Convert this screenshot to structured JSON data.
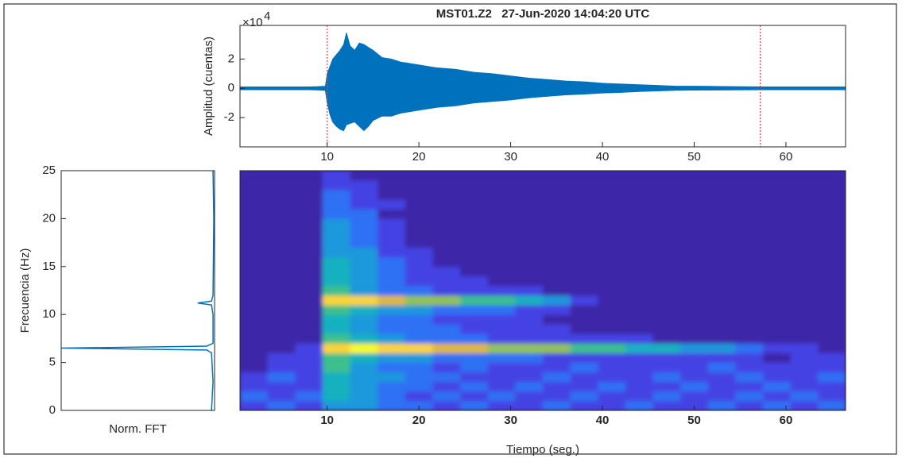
{
  "chart_data": [
    {
      "type": "area",
      "title": "MST01.Z2   27-Jun-2020 14:04:20 UTC",
      "y_scale_label": "×10",
      "y_scale_exponent": 4,
      "ylabel": "Amplitud (cuentas)",
      "x": [
        0.5,
        2,
        4,
        6,
        8,
        9,
        9.8,
        10,
        10.3,
        10.6,
        11,
        11.4,
        11.8,
        12.1,
        12.5,
        13,
        13.5,
        14,
        14.5,
        15,
        16,
        17,
        18,
        19,
        20,
        22,
        24,
        26,
        28,
        30,
        32,
        34,
        36,
        38,
        40,
        42,
        44,
        46,
        48,
        50,
        54,
        58,
        62,
        66.5
      ],
      "series": [
        {
          "color": "#0072bd",
          "values": [
            0.1,
            0.1,
            0.1,
            0.1,
            0.1,
            0.12,
            0.15,
            1.0,
            1.5,
            2.0,
            2.3,
            2.6,
            3.0,
            3.8,
            2.9,
            2.6,
            3.1,
            3.0,
            2.8,
            2.6,
            2.1,
            2.0,
            1.8,
            1.7,
            1.6,
            1.4,
            1.3,
            1.1,
            1.0,
            0.85,
            0.7,
            0.6,
            0.5,
            0.45,
            0.35,
            0.3,
            0.25,
            0.2,
            0.15,
            0.15,
            0.12,
            0.1,
            0.1,
            0.1
          ]
        },
        {
          "color": "#0072bd",
          "values": [
            -0.1,
            -0.1,
            -0.1,
            -0.1,
            -0.1,
            -0.12,
            -0.15,
            -1.0,
            -1.8,
            -2.3,
            -2.6,
            -2.8,
            -2.9,
            -2.5,
            -2.4,
            -2.3,
            -2.6,
            -2.9,
            -2.6,
            -2.2,
            -1.9,
            -1.9,
            -1.7,
            -1.6,
            -1.5,
            -1.3,
            -1.2,
            -1.0,
            -0.9,
            -0.8,
            -0.65,
            -0.55,
            -0.45,
            -0.4,
            -0.32,
            -0.28,
            -0.22,
            -0.18,
            -0.14,
            -0.13,
            -0.11,
            -0.1,
            -0.1,
            -0.1
          ]
        }
      ],
      "picks": [
        10,
        57.2
      ],
      "pick_color": "#e8433a",
      "xlim": [
        0.5,
        66.5
      ],
      "xticks": [
        10,
        20,
        30,
        40,
        50,
        60
      ],
      "ylim": [
        -4,
        4.3
      ],
      "yticks": [
        -2,
        0,
        2
      ]
    },
    {
      "type": "line",
      "ylabel": "Frecuencia (Hz)",
      "xlabel": "Norm. FFT",
      "frequencies": [
        0,
        3,
        6,
        6.3,
        6.5,
        6.7,
        7,
        10,
        11,
        11.2,
        11.4,
        12,
        20,
        24.9,
        25
      ],
      "values": [
        0.02,
        0.01,
        0.02,
        0.05,
        1,
        0.05,
        0.01,
        0.01,
        0.02,
        0.11,
        0.02,
        0.01,
        0.005,
        0.01,
        0.01
      ],
      "color": "#0072bd",
      "xlim": [
        1,
        0
      ],
      "ylim": [
        0,
        25
      ],
      "yticks": [
        0,
        5,
        10,
        15,
        20,
        25
      ]
    },
    {
      "type": "heatmap",
      "xlabel": "Tiempo (seg.)",
      "time_bins": [
        0.5,
        3.5,
        6.5,
        9.5,
        12.5,
        15.5,
        18.5,
        21.5,
        24.5,
        27.5,
        30.5,
        33.5,
        36.5,
        39.5,
        42.5,
        45.5,
        48.5,
        51.5,
        54.5,
        57.5,
        60.5,
        63.5,
        66.5
      ],
      "freq_bins": [
        0,
        1,
        2,
        3,
        4,
        5,
        6,
        7,
        8,
        9,
        10,
        11,
        12,
        13,
        14,
        15,
        16,
        17,
        18,
        19,
        20,
        21,
        22,
        23,
        24,
        25
      ],
      "z": [
        [
          1,
          2,
          1,
          3,
          3,
          2,
          2,
          1,
          2,
          1,
          1,
          2,
          1,
          1,
          2,
          1,
          1,
          2,
          1,
          2,
          1,
          2
        ],
        [
          2,
          1,
          2,
          4,
          3,
          2,
          1,
          2,
          1,
          2,
          1,
          1,
          2,
          1,
          1,
          2,
          1,
          1,
          2,
          1,
          2,
          1
        ],
        [
          1,
          1,
          1,
          4,
          3,
          2,
          2,
          1,
          2,
          1,
          2,
          1,
          1,
          2,
          1,
          1,
          2,
          1,
          1,
          2,
          1,
          1
        ],
        [
          1,
          2,
          1,
          4,
          3,
          3,
          2,
          2,
          1,
          1,
          1,
          2,
          1,
          1,
          1,
          2,
          1,
          1,
          2,
          1,
          1,
          2
        ],
        [
          0,
          1,
          1,
          5,
          3,
          2,
          2,
          1,
          2,
          1,
          1,
          1,
          2,
          1,
          1,
          1,
          1,
          2,
          1,
          1,
          1,
          1
        ],
        [
          0,
          1,
          1,
          5,
          4,
          3,
          3,
          2,
          2,
          2,
          2,
          1,
          1,
          1,
          1,
          1,
          1,
          1,
          1,
          0,
          1,
          1
        ],
        [
          0,
          0,
          1,
          8,
          9,
          8,
          8,
          7,
          7,
          6,
          6,
          6,
          5,
          5,
          4,
          4,
          3,
          3,
          2,
          1,
          1,
          0
        ],
        [
          0,
          0,
          0,
          5,
          4,
          3,
          2,
          2,
          2,
          1,
          1,
          1,
          1,
          1,
          1,
          0,
          0,
          0,
          0,
          0,
          0,
          0
        ],
        [
          0,
          0,
          0,
          4,
          3,
          2,
          2,
          2,
          1,
          1,
          1,
          1,
          0,
          0,
          0,
          0,
          0,
          0,
          0,
          0,
          0,
          0
        ],
        [
          0,
          0,
          0,
          4,
          3,
          2,
          2,
          1,
          1,
          1,
          1,
          0,
          0,
          0,
          0,
          0,
          0,
          0,
          0,
          0,
          0,
          0
        ],
        [
          0,
          0,
          0,
          5,
          4,
          3,
          3,
          2,
          2,
          2,
          1,
          1,
          0,
          0,
          0,
          0,
          0,
          0,
          0,
          0,
          0,
          0
        ],
        [
          0,
          0,
          0,
          8,
          8,
          7,
          6,
          6,
          5,
          5,
          4,
          3,
          1,
          0,
          0,
          0,
          0,
          0,
          0,
          0,
          0,
          0
        ],
        [
          0,
          0,
          0,
          5,
          3,
          2,
          2,
          1,
          1,
          1,
          1,
          0,
          0,
          0,
          0,
          0,
          0,
          0,
          0,
          0,
          0,
          0
        ],
        [
          0,
          0,
          0,
          4,
          3,
          2,
          1,
          1,
          1,
          0,
          0,
          0,
          0,
          0,
          0,
          0,
          0,
          0,
          0,
          0,
          0,
          0
        ],
        [
          0,
          0,
          0,
          4,
          3,
          2,
          1,
          1,
          0,
          0,
          0,
          0,
          0,
          0,
          0,
          0,
          0,
          0,
          0,
          0,
          0,
          0
        ],
        [
          0,
          0,
          0,
          4,
          3,
          2,
          1,
          0,
          0,
          0,
          0,
          0,
          0,
          0,
          0,
          0,
          0,
          0,
          0,
          0,
          0,
          0
        ],
        [
          0,
          0,
          0,
          3,
          3,
          1,
          1,
          0,
          0,
          0,
          0,
          0,
          0,
          0,
          0,
          0,
          0,
          0,
          0,
          0,
          0,
          0
        ],
        [
          0,
          0,
          0,
          3,
          2,
          1,
          0,
          0,
          0,
          0,
          0,
          0,
          0,
          0,
          0,
          0,
          0,
          0,
          0,
          0,
          0,
          0
        ],
        [
          0,
          0,
          0,
          3,
          2,
          1,
          0,
          0,
          0,
          0,
          0,
          0,
          0,
          0,
          0,
          0,
          0,
          0,
          0,
          0,
          0,
          0
        ],
        [
          0,
          0,
          0,
          3,
          2,
          1,
          0,
          0,
          0,
          0,
          0,
          0,
          0,
          0,
          0,
          0,
          0,
          0,
          0,
          0,
          0,
          0
        ],
        [
          0,
          0,
          0,
          2,
          2,
          0,
          0,
          0,
          0,
          0,
          0,
          0,
          0,
          0,
          0,
          0,
          0,
          0,
          0,
          0,
          0,
          0
        ],
        [
          0,
          0,
          0,
          2,
          1,
          1,
          0,
          0,
          0,
          0,
          0,
          0,
          0,
          0,
          0,
          0,
          0,
          0,
          0,
          0,
          0,
          0
        ],
        [
          0,
          0,
          0,
          2,
          1,
          0,
          0,
          0,
          0,
          0,
          0,
          0,
          0,
          0,
          0,
          0,
          0,
          0,
          0,
          0,
          0,
          0
        ],
        [
          0,
          0,
          0,
          1,
          1,
          0,
          0,
          0,
          0,
          0,
          0,
          0,
          0,
          0,
          0,
          0,
          0,
          0,
          0,
          0,
          0,
          0
        ],
        [
          0,
          0,
          0,
          1,
          0,
          0,
          0,
          0,
          0,
          0,
          0,
          0,
          0,
          0,
          0,
          0,
          0,
          0,
          0,
          0,
          0,
          0
        ]
      ],
      "zlim": [
        0,
        9
      ],
      "colormap": [
        "#3e26a8",
        "#4443e4",
        "#2d71f5",
        "#1b98dc",
        "#12b1c0",
        "#3ebf8e",
        "#93c250",
        "#e0b832",
        "#fcd42e",
        "#f9fb14"
      ],
      "xlim": [
        0.5,
        66.5
      ],
      "xticks": [
        10,
        20,
        30,
        40,
        50,
        60
      ],
      "ylim": [
        0,
        25
      ]
    }
  ]
}
